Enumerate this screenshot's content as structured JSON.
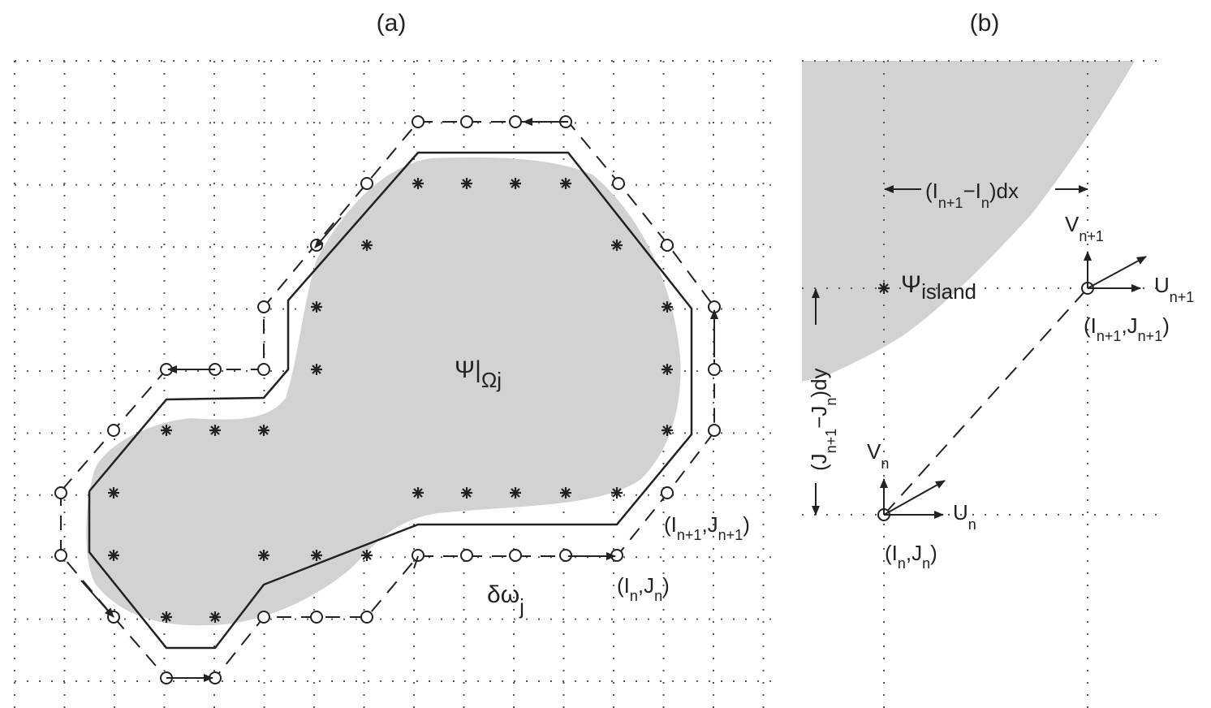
{
  "panel_a": {
    "label": "(a)",
    "region_label": {
      "psi": "Ψ|",
      "sub": "Ωj"
    },
    "boundary_label": {
      "main": "δω",
      "sub": "j"
    },
    "node_label_n": {
      "open": "(I",
      "i_sub": "n",
      "mid": ",J",
      "j_sub": "n",
      "close": ")"
    },
    "node_label_n1": {
      "open": "(I",
      "i_sub": "n+1",
      "mid": ",J",
      "j_sub": "n+1",
      "close": ")"
    }
  },
  "panel_b": {
    "label": "(b)",
    "island_label": {
      "main": "Ψ",
      "sub": "island"
    },
    "dx_label": {
      "open": "(I",
      "s1": "n+1",
      "mid": "−I",
      "s2": "n",
      "close": ")dx"
    },
    "dy_label": {
      "open": "(J",
      "s1": "n+1",
      "mid": "−J",
      "s2": "n",
      "close": ")dy"
    },
    "u_n1": {
      "main": "U",
      "sub": "n+1"
    },
    "v_n1": {
      "main": "V",
      "sub": "n+1"
    },
    "u_n": {
      "main": "U",
      "sub": "n"
    },
    "v_n": {
      "main": "V",
      "sub": "n"
    },
    "node_label_n1": {
      "open": "(I",
      "i_sub": "n+1",
      "mid": ",J",
      "j_sub": "n+1",
      "close": ")"
    },
    "node_label_n": {
      "open": "(I",
      "i_sub": "n",
      "mid": ",J",
      "j_sub": "n",
      "close": ")"
    }
  },
  "colors": {
    "shade": "#d2d2d2",
    "ink": "#222222",
    "grid": "#555555"
  }
}
